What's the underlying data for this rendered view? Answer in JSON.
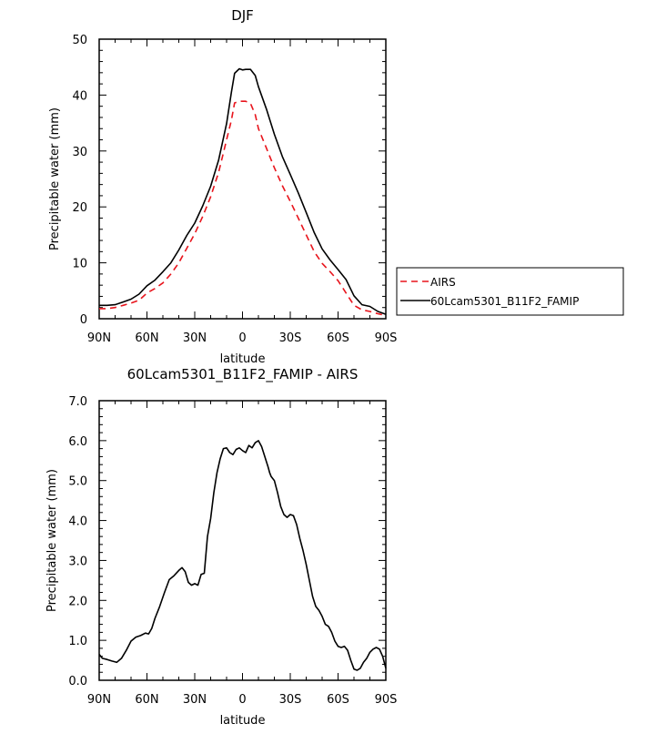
{
  "chart_data": [
    {
      "type": "line",
      "title": "DJF",
      "xlabel": "latitude",
      "ylabel": "Precipitable water (mm)",
      "x_ticks": [
        -90,
        -60,
        -30,
        0,
        30,
        60,
        90
      ],
      "x_tick_labels": [
        "90N",
        "60N",
        "30N",
        "0",
        "30S",
        "60S",
        "90S"
      ],
      "y_ticks": [
        0,
        10,
        20,
        30,
        40,
        50
      ],
      "y_tick_labels": [
        "0",
        "10",
        "20",
        "30",
        "40",
        "50"
      ],
      "xlim": [
        -90,
        90
      ],
      "ylim": [
        0,
        50
      ],
      "grid": false,
      "legend_position": "right",
      "x": [
        -90,
        -85,
        -80,
        -75,
        -70,
        -65,
        -60,
        -55,
        -50,
        -45,
        -40,
        -35,
        -30,
        -25,
        -20,
        -15,
        -10,
        -7,
        -5,
        -2,
        0,
        2,
        5,
        8,
        10,
        15,
        20,
        25,
        30,
        35,
        40,
        45,
        50,
        55,
        60,
        65,
        70,
        75,
        80,
        85,
        90
      ],
      "series": [
        {
          "name": "AIRS",
          "color": "#e8141c",
          "dash": "7,5",
          "values": [
            1.8,
            1.8,
            2.0,
            2.4,
            2.8,
            3.3,
            4.6,
            5.4,
            6.4,
            8.0,
            10.0,
            12.6,
            15.2,
            18.3,
            21.8,
            26.2,
            32.0,
            35.5,
            38.6,
            38.9,
            38.9,
            38.9,
            38.5,
            36.5,
            34.0,
            30.5,
            27.0,
            23.8,
            21.0,
            18.0,
            15.0,
            12.0,
            9.9,
            8.4,
            6.8,
            4.6,
            2.4,
            1.6,
            1.3,
            0.9,
            0.6
          ]
        },
        {
          "name": "60Lcam5301_B11F2_FAMIP",
          "color": "#000000",
          "dash": "",
          "values": [
            2.4,
            2.4,
            2.5,
            3.0,
            3.5,
            4.4,
            5.9,
            6.9,
            8.4,
            10.0,
            12.3,
            14.9,
            17.1,
            20.2,
            23.7,
            28.4,
            34.9,
            40.5,
            43.9,
            44.7,
            44.5,
            44.6,
            44.6,
            43.5,
            41.5,
            37.5,
            33.0,
            29.0,
            25.8,
            22.5,
            19.0,
            15.4,
            12.5,
            10.5,
            8.8,
            7.0,
            4.1,
            2.5,
            2.2,
            1.3,
            0.8
          ]
        }
      ]
    },
    {
      "type": "line",
      "title": "60Lcam5301_B11F2_FAMIP - AIRS",
      "xlabel": "latitude",
      "ylabel": "Precipitable water (mm)",
      "x_ticks": [
        -90,
        -60,
        -30,
        0,
        30,
        60,
        90
      ],
      "x_tick_labels": [
        "90N",
        "60N",
        "30N",
        "0",
        "30S",
        "60S",
        "90S"
      ],
      "y_ticks": [
        0,
        1,
        2,
        3,
        4,
        5,
        6,
        7
      ],
      "y_tick_labels": [
        "0.0",
        "1.0",
        "2.0",
        "3.0",
        "4.0",
        "5.0",
        "6.0",
        "7.0"
      ],
      "xlim": [
        -90,
        90
      ],
      "ylim": [
        0,
        7
      ],
      "grid": false,
      "x": [
        -90,
        -88,
        -85,
        -82,
        -79,
        -76,
        -73,
        -70,
        -67,
        -64,
        -61,
        -59,
        -57,
        -55,
        -52,
        -49,
        -46,
        -43,
        -40,
        -38,
        -36,
        -34,
        -32,
        -30,
        -28,
        -26,
        -24,
        -22,
        -20,
        -18,
        -16,
        -14,
        -12,
        -10,
        -8,
        -6,
        -4,
        -2,
        0,
        2,
        4,
        6,
        8,
        10,
        12,
        14,
        16,
        17,
        18,
        20,
        22,
        24,
        26,
        28,
        30,
        32,
        34,
        36,
        38,
        40,
        42,
        44,
        46,
        48,
        50,
        52,
        54,
        56,
        58,
        60,
        62,
        64,
        66,
        68,
        70,
        72,
        74,
        76,
        78,
        80,
        82,
        84,
        86,
        88,
        90
      ],
      "series": [
        {
          "name": "",
          "color": "#000000",
          "dash": "",
          "values": [
            0.65,
            0.55,
            0.52,
            0.48,
            0.45,
            0.55,
            0.75,
            0.98,
            1.08,
            1.12,
            1.18,
            1.16,
            1.3,
            1.55,
            1.85,
            2.2,
            2.52,
            2.62,
            2.75,
            2.82,
            2.72,
            2.45,
            2.38,
            2.42,
            2.38,
            2.65,
            2.68,
            3.6,
            4.05,
            4.7,
            5.2,
            5.55,
            5.8,
            5.82,
            5.7,
            5.65,
            5.78,
            5.82,
            5.75,
            5.7,
            5.88,
            5.82,
            5.95,
            6.0,
            5.85,
            5.6,
            5.35,
            5.2,
            5.1,
            5.0,
            4.7,
            4.35,
            4.15,
            4.08,
            4.15,
            4.12,
            3.9,
            3.55,
            3.25,
            2.9,
            2.5,
            2.1,
            1.85,
            1.75,
            1.6,
            1.4,
            1.35,
            1.2,
            0.98,
            0.85,
            0.82,
            0.85,
            0.75,
            0.5,
            0.28,
            0.25,
            0.3,
            0.45,
            0.55,
            0.7,
            0.78,
            0.82,
            0.78,
            0.6,
            0.3
          ]
        }
      ]
    }
  ]
}
